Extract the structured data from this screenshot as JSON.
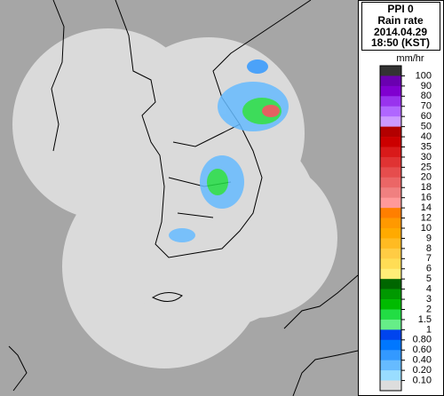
{
  "header": {
    "product": "PPI 0",
    "variable": "Rain rate",
    "date": "2014.04.29",
    "time": "18:50 (KST)"
  },
  "legend": {
    "unit": "mm/hr",
    "labels": [
      "100",
      "90",
      "80",
      "70",
      "60",
      "50",
      "40",
      "35",
      "30",
      "25",
      "20",
      "18",
      "16",
      "14",
      "12",
      "10",
      "9",
      "8",
      "7",
      "6",
      "5",
      "4",
      "3",
      "2",
      "1.5",
      "1",
      "0.80",
      "0.60",
      "0.40",
      "0.20",
      "0.10"
    ],
    "colors": [
      "#333333",
      "#6a00b0",
      "#8000d0",
      "#9933ee",
      "#b066ff",
      "#cc99ff",
      "#b30000",
      "#cc0000",
      "#d91a1a",
      "#e03333",
      "#e64d4d",
      "#eb6666",
      "#f08080",
      "#ff9999",
      "#ff7f00",
      "#ff9900",
      "#ffaa00",
      "#ffbb22",
      "#ffcc44",
      "#ffdd55",
      "#ffee77",
      "#006600",
      "#009900",
      "#00bb00",
      "#22dd44",
      "#66ee88",
      "#0044ee",
      "#0077ff",
      "#3399ff",
      "#66bbff",
      "#99ddff",
      "#dddddd"
    ]
  }
}
